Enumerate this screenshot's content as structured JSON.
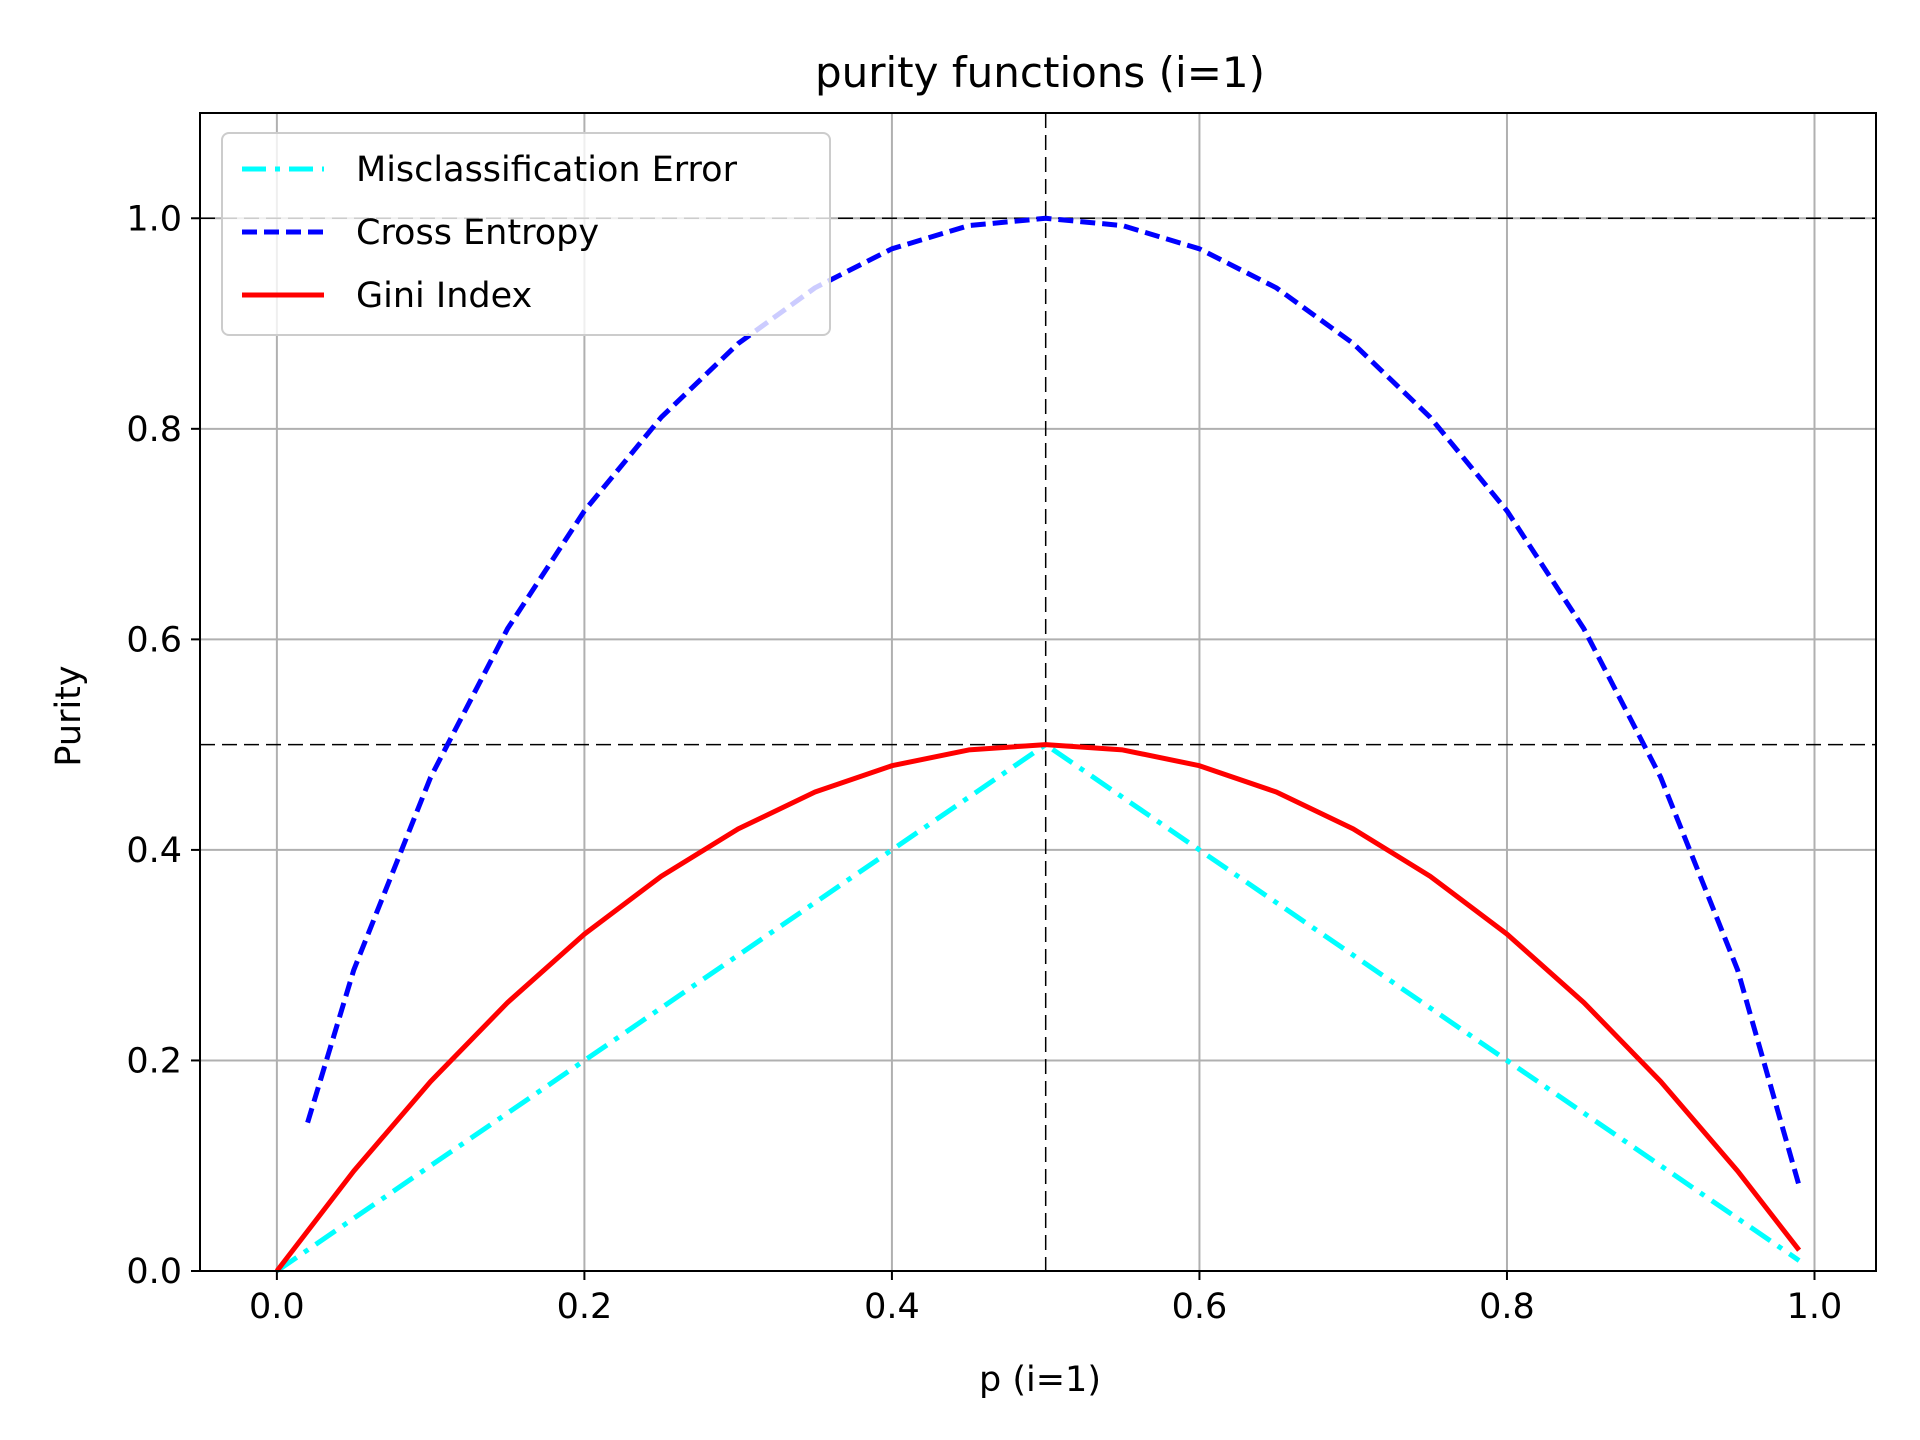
{
  "chart_data": {
    "type": "line",
    "title": "purity functions (i=1)",
    "xlabel": "p (i=1)",
    "ylabel": "Purity",
    "xlim": [
      -0.05,
      1.04
    ],
    "ylim": [
      0.0,
      1.1
    ],
    "xticks": [
      0.0,
      0.2,
      0.4,
      0.6,
      0.8,
      1.0
    ],
    "xtick_labels": [
      "0.0",
      "0.2",
      "0.4",
      "0.6",
      "0.8",
      "1.0"
    ],
    "yticks": [
      0.0,
      0.2,
      0.4,
      0.6,
      0.8,
      1.0
    ],
    "ytick_labels": [
      "0.0",
      "0.2",
      "0.4",
      "0.6",
      "0.8",
      "1.0"
    ],
    "grid": true,
    "legend_position": "upper-left",
    "reference_lines": {
      "horizontal": [
        0.5,
        1.0
      ],
      "vertical": [
        0.5
      ],
      "color": "#000000",
      "style": "dashed"
    },
    "series": [
      {
        "name": "Misclassification Error",
        "color": "#00ffff",
        "style": "dashdot",
        "x": [
          0.0,
          0.1,
          0.2,
          0.3,
          0.4,
          0.5,
          0.6,
          0.7,
          0.8,
          0.9,
          0.99
        ],
        "y": [
          0.0,
          0.1,
          0.2,
          0.3,
          0.4,
          0.5,
          0.4,
          0.3,
          0.2,
          0.1,
          0.01
        ]
      },
      {
        "name": "Cross Entropy",
        "color": "#0000ff",
        "style": "dashed",
        "x": [
          0.02,
          0.05,
          0.1,
          0.15,
          0.2,
          0.25,
          0.3,
          0.35,
          0.4,
          0.45,
          0.5,
          0.55,
          0.6,
          0.65,
          0.7,
          0.75,
          0.8,
          0.85,
          0.9,
          0.95,
          0.99
        ],
        "y": [
          0.141,
          0.286,
          0.469,
          0.61,
          0.722,
          0.811,
          0.881,
          0.934,
          0.971,
          0.993,
          1.0,
          0.993,
          0.971,
          0.934,
          0.881,
          0.811,
          0.722,
          0.61,
          0.469,
          0.286,
          0.081
        ]
      },
      {
        "name": "Gini Index",
        "color": "#ff0000",
        "style": "solid",
        "x": [
          0.0,
          0.05,
          0.1,
          0.15,
          0.2,
          0.25,
          0.3,
          0.35,
          0.4,
          0.45,
          0.5,
          0.55,
          0.6,
          0.65,
          0.7,
          0.75,
          0.8,
          0.85,
          0.9,
          0.95,
          0.99
        ],
        "y": [
          0.0,
          0.095,
          0.18,
          0.255,
          0.32,
          0.375,
          0.42,
          0.455,
          0.48,
          0.495,
          0.5,
          0.495,
          0.48,
          0.455,
          0.42,
          0.375,
          0.32,
          0.255,
          0.18,
          0.095,
          0.0198
        ]
      }
    ]
  }
}
